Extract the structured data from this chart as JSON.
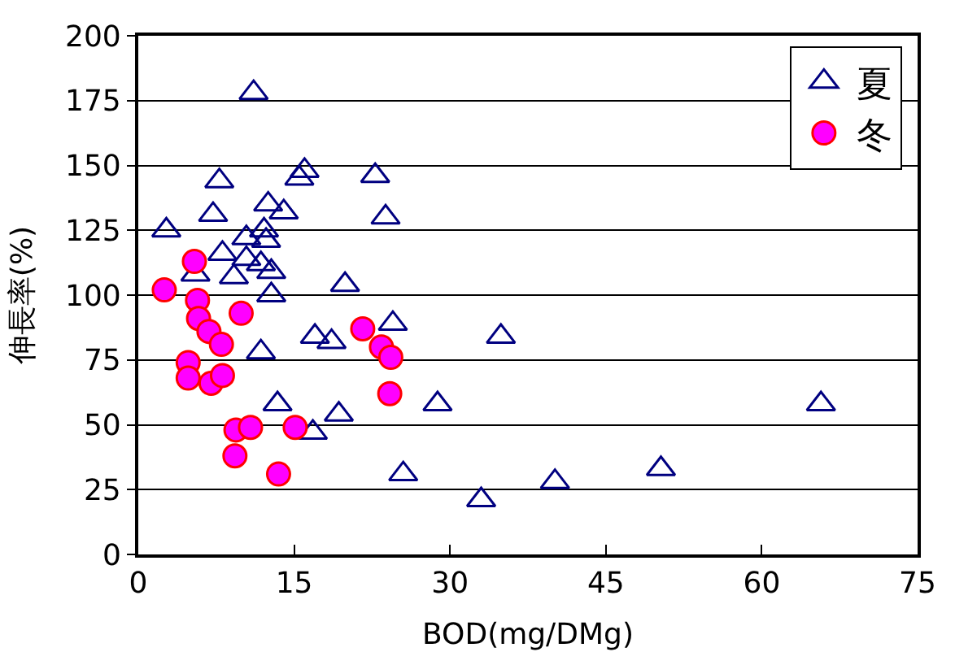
{
  "chart_data": {
    "type": "scatter",
    "xlabel": "BOD(mg/DMg)",
    "ylabel": "伸長率(%)",
    "xlim": [
      0,
      75
    ],
    "xticks": [
      0,
      15,
      30,
      45,
      60,
      75
    ],
    "ylim": [
      0,
      200
    ],
    "yticks": [
      0,
      25,
      50,
      75,
      100,
      125,
      150,
      175,
      200
    ],
    "grid": "y",
    "legend": "top right",
    "series": [
      {
        "name": "夏",
        "color": "#000080",
        "marker": "triangle",
        "x": [
          11.1,
          2.7,
          7.8,
          7.2,
          12.5,
          14.0,
          15.5,
          16.0,
          22.8,
          23.8,
          10.4,
          12.1,
          12.3,
          8.1,
          5.5,
          10.4,
          11.8,
          9.2,
          12.8,
          12.8,
          19.9,
          11.8,
          17.0,
          18.6,
          24.5,
          13.4,
          19.3,
          16.8,
          25.5,
          34.9,
          28.8,
          65.7,
          33.0,
          40.1,
          50.3
        ],
        "values": [
          178,
          125,
          144,
          131,
          135,
          132,
          145,
          148,
          146,
          130,
          122,
          125,
          121,
          116,
          108,
          114,
          112,
          107,
          109,
          100,
          104,
          78,
          84,
          82,
          89,
          58,
          54,
          47,
          31,
          84,
          58,
          58,
          21,
          28,
          33
        ]
      },
      {
        "name": "冬",
        "color": "#ff00ff",
        "marker": "circle",
        "x": [
          5.4,
          2.5,
          5.7,
          5.8,
          6.8,
          9.9,
          8.0,
          4.8,
          4.8,
          7.0,
          8.1,
          9.4,
          10.8,
          15.1,
          9.3,
          13.5,
          21.6,
          23.4,
          24.3,
          24.2
        ],
        "values": [
          113,
          102,
          98,
          91,
          86,
          93,
          81,
          74,
          68,
          66,
          69,
          48,
          49,
          49,
          38,
          31,
          87,
          80,
          76,
          62
        ]
      }
    ]
  }
}
